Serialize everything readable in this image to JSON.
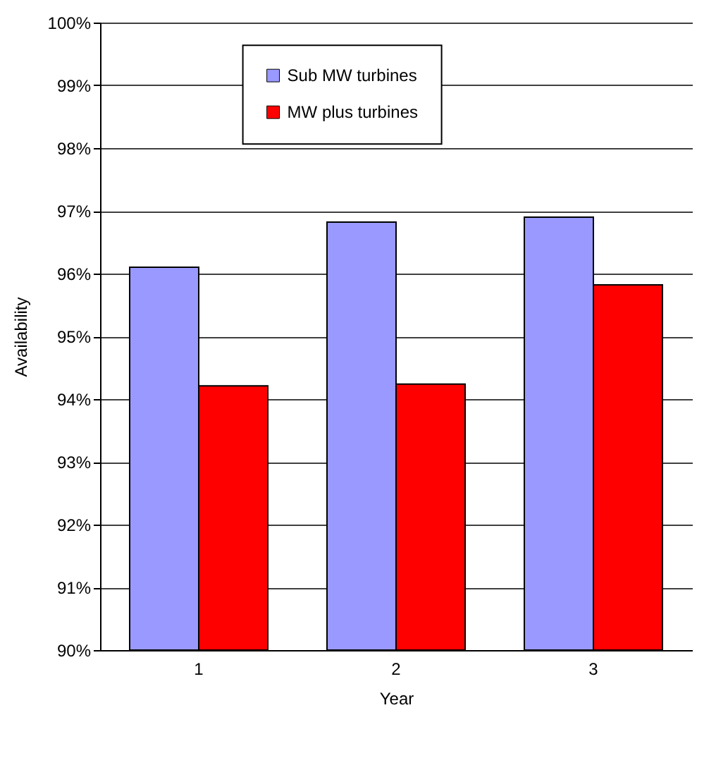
{
  "chart_data": {
    "type": "bar",
    "xlabel": "Year",
    "ylabel": "Availability",
    "categories": [
      "1",
      "2",
      "3"
    ],
    "series": [
      {
        "name": "Sub MW turbines",
        "color": "#9999ff",
        "values": [
          96.1,
          96.82,
          96.9
        ]
      },
      {
        "name": "MW plus turbines",
        "color": "#ff0000",
        "values": [
          94.21,
          94.24,
          95.82
        ]
      }
    ],
    "ylim": [
      90,
      100
    ],
    "yticks": [
      {
        "value": 90,
        "label": "90%"
      },
      {
        "value": 91,
        "label": "91%"
      },
      {
        "value": 92,
        "label": "92%"
      },
      {
        "value": 93,
        "label": "93%"
      },
      {
        "value": 94,
        "label": "94%"
      },
      {
        "value": 95,
        "label": "95%"
      },
      {
        "value": 96,
        "label": "96%"
      },
      {
        "value": 97,
        "label": "97%"
      },
      {
        "value": 98,
        "label": "98%"
      },
      {
        "value": 99,
        "label": "99%"
      },
      {
        "value": 100,
        "label": "100%"
      }
    ],
    "grid": "y",
    "legend": "top"
  }
}
